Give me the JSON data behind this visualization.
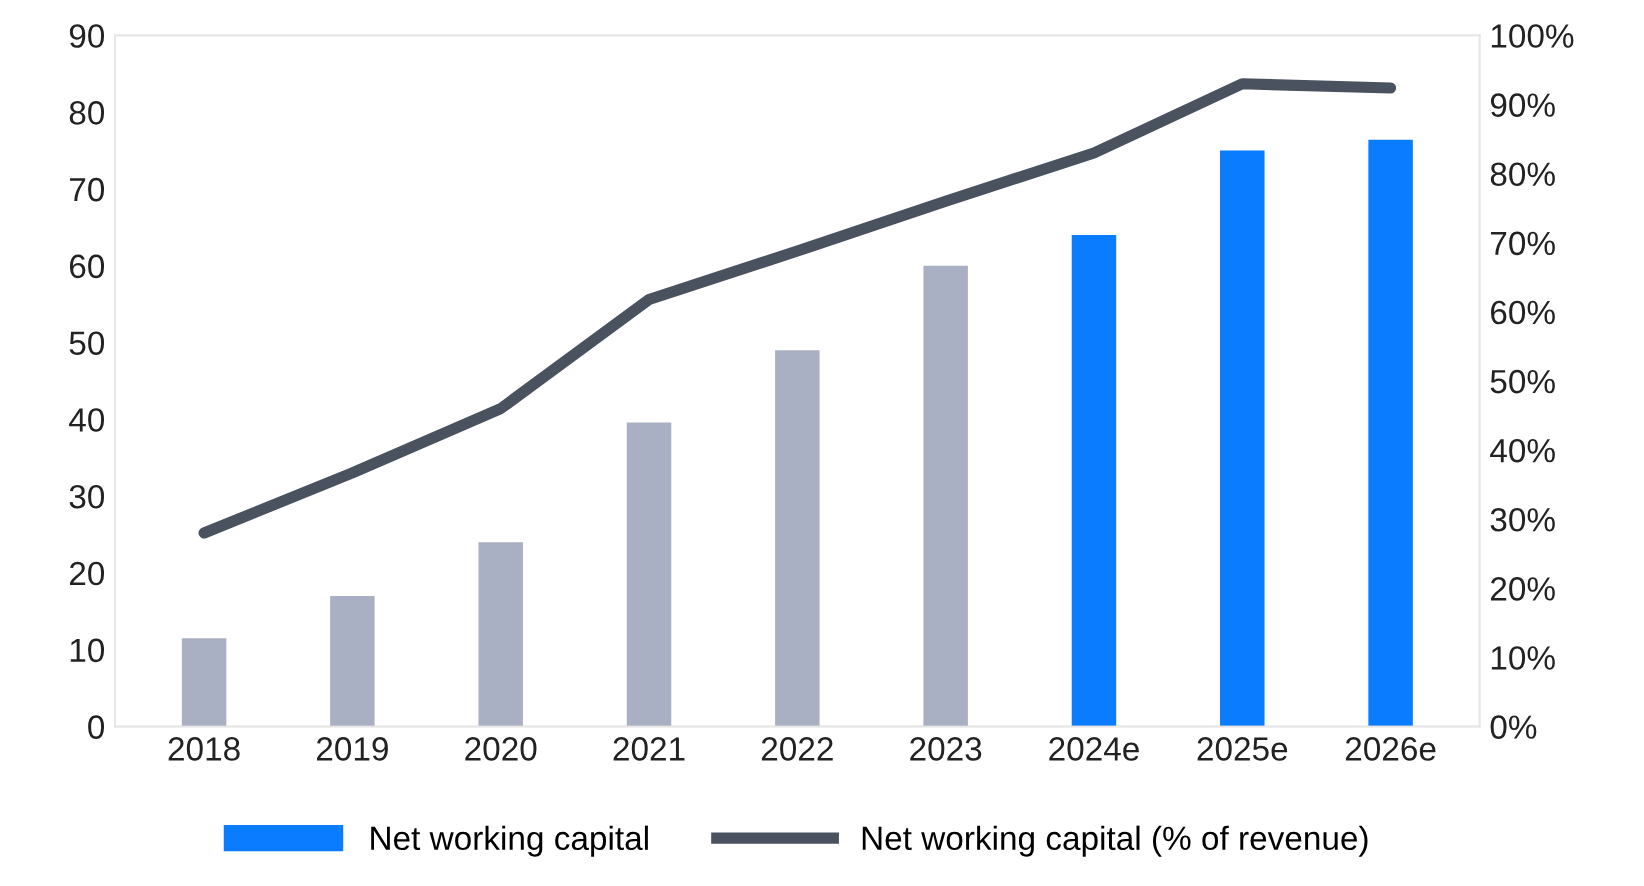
{
  "chart_data": {
    "type": "bar",
    "categories": [
      "2018",
      "2019",
      "2020",
      "2021",
      "2022",
      "2023",
      "2024e",
      "2025e",
      "2026e"
    ],
    "series": [
      {
        "name": "Net working capital",
        "color": "#0a7cff",
        "colors": [
          "#aab0c4",
          "#aab0c4",
          "#aab0c4",
          "#aab0c4",
          "#aab0c4",
          "#aab0c4",
          "#0a7cff",
          "#0a7cff",
          "#0a7cff"
        ],
        "values": [
          11.5,
          17,
          24,
          39.6,
          49,
          60,
          64,
          75,
          76.4
        ]
      },
      {
        "name": "Net working capital (% of revenue)",
        "type": "line",
        "axis": "y2",
        "color": "#4a5260",
        "line_style": "solid",
        "marker": "none",
        "values": [
          28,
          36.7,
          46,
          61.8,
          68.8,
          76,
          83,
          93,
          92.4
        ]
      }
    ],
    "ylim": [
      0,
      90
    ],
    "yticks": [
      0,
      10,
      20,
      30,
      40,
      50,
      60,
      70,
      80,
      90
    ],
    "y2lim": [
      0,
      100
    ],
    "y2ticks": [
      {
        "value": 0,
        "label": "0%"
      },
      {
        "value": 10,
        "label": "10%"
      },
      {
        "value": 20,
        "label": "20%"
      },
      {
        "value": 30,
        "label": "30%"
      },
      {
        "value": 40,
        "label": "40%"
      },
      {
        "value": 50,
        "label": "50%"
      },
      {
        "value": 60,
        "label": "60%"
      },
      {
        "value": 70,
        "label": "70%"
      },
      {
        "value": 80,
        "label": "80%"
      },
      {
        "value": 90,
        "label": "90%"
      },
      {
        "value": 100,
        "label": "100%"
      }
    ],
    "grid": false,
    "legend": "bottom"
  }
}
